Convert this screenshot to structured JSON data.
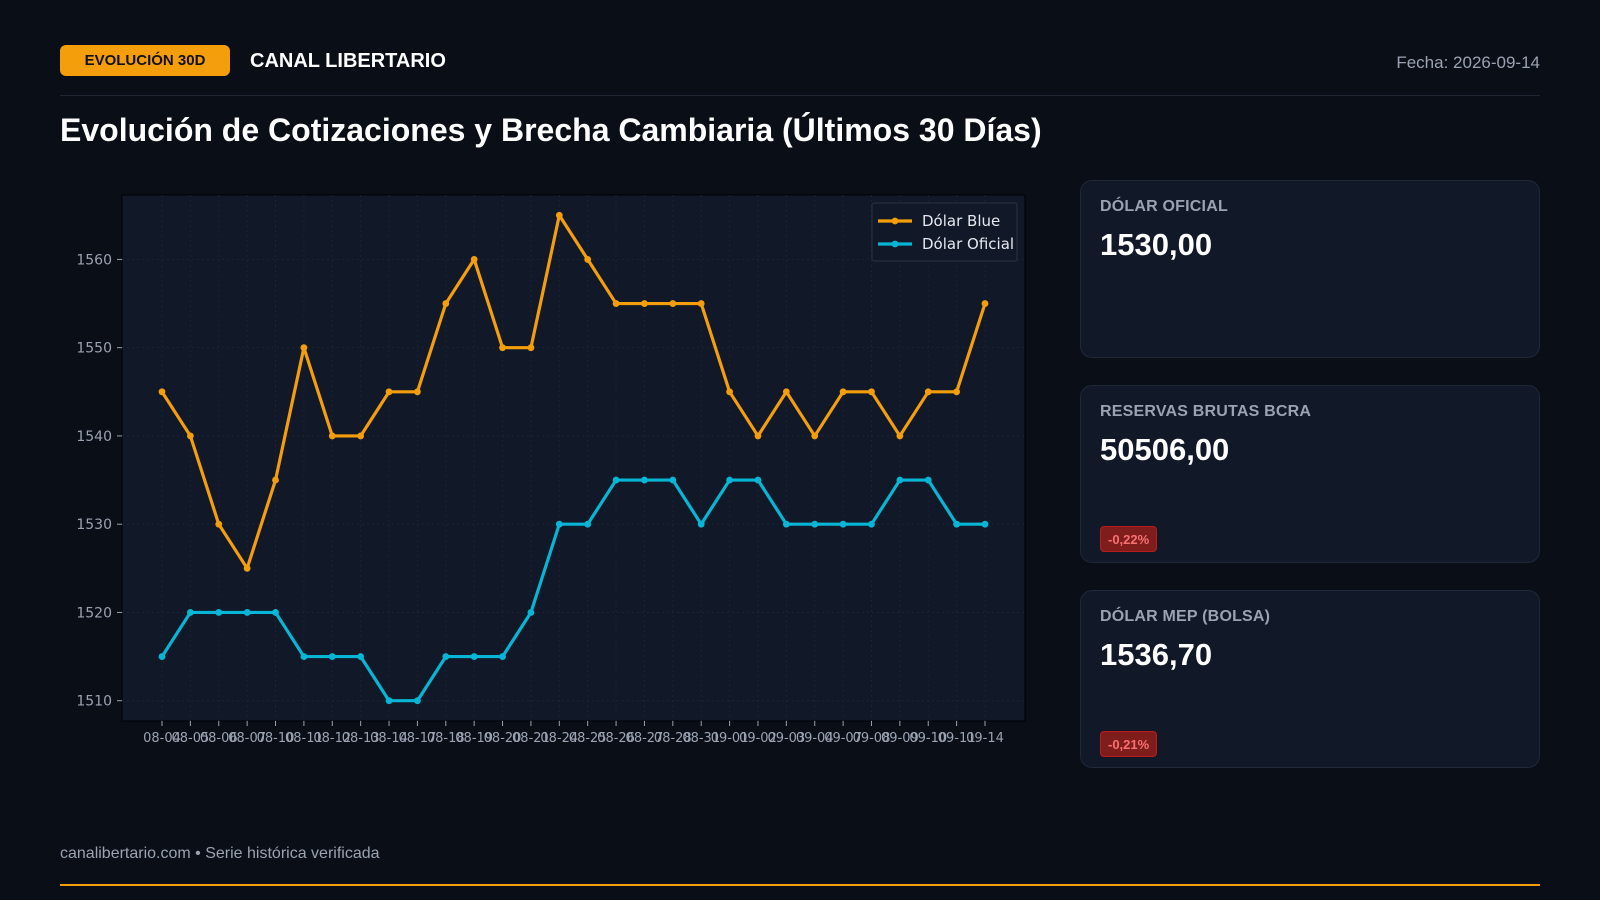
{
  "header": {
    "badge": "EVOLUCIÓN 30D",
    "brand": "CANAL LIBERTARIO",
    "date": "Fecha: 2026-09-14"
  },
  "title": "Evolución de Cotizaciones y Brecha Cambiaria (Últimos 30 Días)",
  "cards": [
    {
      "label": "DÓLAR OFICIAL",
      "value": "1530,00",
      "delta": ""
    },
    {
      "label": "RESERVAS BRUTAS BCRA",
      "value": "50506,00",
      "delta": "-0,22%"
    },
    {
      "label": "DÓLAR MEP (BOLSA)",
      "value": "1536,70",
      "delta": "-0,21%"
    }
  ],
  "footer": {
    "note": "canalibertario.com • Serie histórica verificada"
  },
  "colors": {
    "accent": "#f59e0b",
    "blue_series": "#f59e0b",
    "oficial_series": "#06b6d4",
    "negative": "#f87171"
  },
  "chart_data": {
    "type": "line",
    "title": "",
    "xlabel": "",
    "ylabel": "",
    "x": [
      "08-04",
      "08-05",
      "08-06",
      "08-07",
      "08-10",
      "08-11",
      "08-12",
      "08-13",
      "08-14",
      "08-17",
      "08-18",
      "08-19",
      "08-20",
      "08-21",
      "08-24",
      "08-25",
      "08-26",
      "08-27",
      "08-28",
      "08-31",
      "09-01",
      "09-02",
      "09-03",
      "09-04",
      "09-07",
      "09-08",
      "09-09",
      "09-10",
      "09-11",
      "09-14"
    ],
    "series": [
      {
        "name": "Dólar Blue",
        "values": [
          1545,
          1540,
          1530,
          1525,
          1535,
          1550,
          1540,
          1540,
          1545,
          1545,
          1555,
          1560,
          1550,
          1550,
          1565,
          1560,
          1555,
          1555,
          1555,
          1555,
          1545,
          1540,
          1545,
          1540,
          1545,
          1545,
          1540,
          1545,
          1545,
          1555
        ]
      },
      {
        "name": "Dólar Oficial",
        "values": [
          1515,
          1520,
          1520,
          1520,
          1520,
          1515,
          1515,
          1515,
          1510,
          1510,
          1515,
          1515,
          1515,
          1520,
          1530,
          1530,
          1535,
          1535,
          1535,
          1530,
          1535,
          1535,
          1530,
          1530,
          1530,
          1530,
          1535,
          1535,
          1530,
          1530
        ]
      }
    ],
    "yticks": [
      1510,
      1520,
      1530,
      1540,
      1550,
      1560
    ],
    "ylim": [
      1507.7,
      1567.3
    ],
    "grid": true,
    "legend": "top-right"
  }
}
